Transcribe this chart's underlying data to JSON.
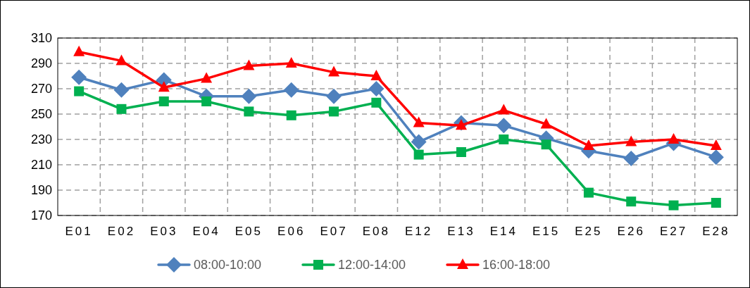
{
  "chart_data": {
    "type": "line",
    "categories": [
      "E01",
      "E02",
      "E03",
      "E04",
      "E05",
      "E06",
      "E07",
      "E08",
      "E12",
      "E13",
      "E14",
      "E15",
      "E25",
      "E26",
      "E27",
      "E28"
    ],
    "series": [
      {
        "name": "08:00-10:00",
        "color": "#4f81bd",
        "marker": "diamond",
        "values": [
          279,
          269,
          277,
          264,
          264,
          269,
          264,
          270,
          228,
          243,
          241,
          231,
          221,
          215,
          227,
          216
        ]
      },
      {
        "name": "12:00-14:00",
        "color": "#00b050",
        "marker": "square",
        "values": [
          268,
          254,
          260,
          260,
          252,
          249,
          252,
          259,
          218,
          220,
          230,
          226,
          188,
          181,
          178,
          180
        ]
      },
      {
        "name": "16:00-18:00",
        "color": "#ff0000",
        "marker": "triangle",
        "values": [
          299,
          292,
          271,
          278,
          288,
          290,
          283,
          280,
          243,
          241,
          253,
          242,
          225,
          228,
          230,
          225
        ]
      }
    ],
    "ylim": [
      170,
      310
    ],
    "yticks": [
      170,
      190,
      210,
      230,
      250,
      270,
      290,
      310
    ],
    "grid": true,
    "legend": "bottom",
    "line_style": "solid"
  }
}
